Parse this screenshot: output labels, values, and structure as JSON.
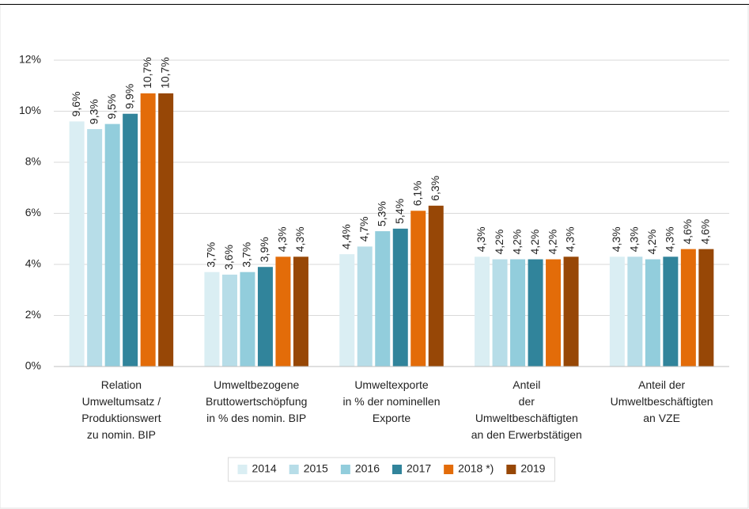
{
  "chart_data": {
    "type": "bar",
    "categories": [
      "Relation\nUmweltumsatz /\nProduktionswert\nzu nomin. BIP",
      "Umweltbezogene\nBruttowertschöpfung\nin % des nomin. BIP",
      "Umweltexporte\nin % der nominellen\nExporte",
      "Anteil\nder\nUmweltbeschäftigten\nan den Erwerbstätigen",
      "Anteil der\nUmweltbeschäftigten\nan VZE"
    ],
    "series": [
      {
        "name": "2014",
        "color": "#daeef3",
        "values": [
          9.6,
          3.7,
          4.4,
          4.3,
          4.3
        ],
        "value_labels": [
          "9,6%",
          "3,7%",
          "4,4%",
          "4,3%",
          "4,3%"
        ]
      },
      {
        "name": "2015",
        "color": "#b7dde8",
        "values": [
          9.3,
          3.6,
          4.7,
          4.2,
          4.3
        ],
        "value_labels": [
          "9,3%",
          "3,6%",
          "4,7%",
          "4,2%",
          "4,3%"
        ]
      },
      {
        "name": "2016",
        "color": "#92cddc",
        "values": [
          9.5,
          3.7,
          5.3,
          4.2,
          4.2
        ],
        "value_labels": [
          "9,5%",
          "3,7%",
          "5,3%",
          "4,2%",
          "4,2%"
        ]
      },
      {
        "name": "2017",
        "color": "#31849b",
        "values": [
          9.9,
          3.9,
          5.4,
          4.2,
          4.3
        ],
        "value_labels": [
          "9,9%",
          "3,9%",
          "5,4%",
          "4,2%",
          "4,3%"
        ]
      },
      {
        "name": "2018 *)",
        "color": "#e36c09",
        "values": [
          10.7,
          4.3,
          6.1,
          4.2,
          4.6
        ],
        "value_labels": [
          "10,7%",
          "4,3%",
          "6,1%",
          "4,2%",
          "4,6%"
        ]
      },
      {
        "name": "2019",
        "color": "#974706",
        "values": [
          10.7,
          4.3,
          6.3,
          4.3,
          4.6
        ],
        "value_labels": [
          "10,7%",
          "4,3%",
          "6,3%",
          "4,3%",
          "4,6%"
        ]
      }
    ],
    "ylim": [
      0,
      12
    ],
    "yticks": [
      {
        "value": 0,
        "label": "0%"
      },
      {
        "value": 2,
        "label": "2%"
      },
      {
        "value": 4,
        "label": "4%"
      },
      {
        "value": 6,
        "label": "6%"
      },
      {
        "value": 8,
        "label": "8%"
      },
      {
        "value": 10,
        "label": "10%"
      },
      {
        "value": 12,
        "label": "12%"
      }
    ],
    "grid": true,
    "legend": "bottom"
  }
}
